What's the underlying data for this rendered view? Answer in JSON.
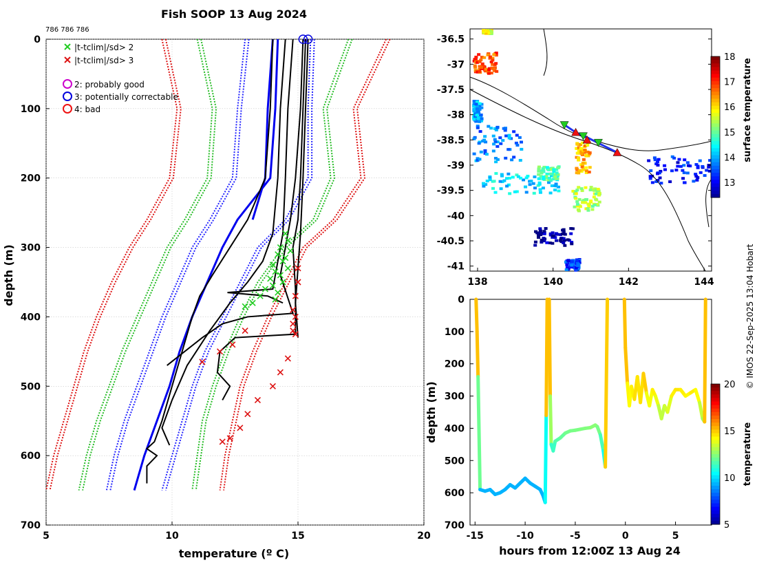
{
  "page_title": "Fish SOOP 13 Aug 2024",
  "ids_label": "786 786 786",
  "copyright": "© IMOS 22-Sep-2025 13:04 Hobart",
  "chart_data": [
    {
      "name": "temperature-profiles",
      "type": "line",
      "title": "Fish SOOP 13 Aug 2024",
      "xlabel": "temperature (º C)",
      "ylabel": "depth (m)",
      "xlim": [
        5,
        20
      ],
      "ylim": [
        700,
        0
      ],
      "xticks": [
        "5",
        "10",
        "15",
        "20"
      ],
      "yticks": [
        "0",
        "100",
        "200",
        "300",
        "400",
        "500",
        "600",
        "700"
      ],
      "legend": {
        "position": "top-left",
        "entries": [
          {
            "label": "|t-tclim|/sd> 2",
            "marker": "x",
            "color": "#22cc22"
          },
          {
            "label": "|t-tclim|/sd> 3",
            "marker": "x",
            "color": "#dd1111"
          },
          {
            "label": "2: probably good",
            "marker": "o",
            "color": "#cc00cc"
          },
          {
            "label": "3: potentially correctable",
            "marker": "o",
            "color": "#0000dd"
          },
          {
            "label": "4: bad",
            "marker": "o",
            "color": "#ee1111"
          }
        ]
      },
      "climatology": [
        {
          "name": "clim mean (solid)",
          "style": "solid",
          "color": "#0000ee",
          "depth": [
            0,
            100,
            200,
            260,
            300,
            350,
            400,
            450,
            500,
            550,
            600,
            650
          ],
          "temp": [
            14.2,
            14.1,
            13.9,
            12.6,
            12.0,
            11.4,
            10.8,
            10.3,
            9.9,
            9.4,
            8.9,
            8.5
          ]
        },
        {
          "name": "clim mean (second)",
          "style": "solid",
          "color": "#0000ee",
          "depth": [
            0,
            100,
            200,
            260
          ],
          "temp": [
            14.0,
            13.8,
            13.7,
            13.2
          ]
        },
        {
          "name": "clim -1sd",
          "style": "dotted",
          "color": "#2222ff",
          "depth": [
            0,
            100,
            200,
            260,
            300,
            350,
            400,
            450,
            500,
            550,
            600,
            650
          ],
          "temp": [
            12.9,
            12.6,
            12.4,
            11.5,
            10.8,
            10.2,
            9.6,
            9.1,
            8.6,
            8.1,
            7.7,
            7.4
          ]
        },
        {
          "name": "clim +1sd",
          "style": "dotted",
          "color": "#2222ff",
          "depth": [
            0,
            100,
            200,
            260,
            300,
            350,
            400,
            450,
            500,
            550,
            600,
            650
          ],
          "temp": [
            15.5,
            15.4,
            15.4,
            14.5,
            13.4,
            12.7,
            12.0,
            11.3,
            10.8,
            10.4,
            10.0,
            9.6
          ]
        },
        {
          "name": "clim -2sd",
          "style": "dotted",
          "color": "#22bb22",
          "depth": [
            0,
            100,
            200,
            260,
            300,
            350,
            400,
            450,
            500,
            550,
            600,
            650
          ],
          "temp": [
            11.0,
            11.6,
            11.4,
            10.5,
            9.8,
            9.2,
            8.6,
            8.0,
            7.5,
            7.0,
            6.6,
            6.3
          ]
        },
        {
          "name": "clim +2sd",
          "style": "dotted",
          "color": "#22bb22",
          "depth": [
            0,
            100,
            200,
            260,
            300,
            350,
            400,
            450,
            500,
            550,
            600,
            650
          ],
          "temp": [
            17.0,
            16.0,
            16.3,
            15.6,
            14.4,
            13.4,
            12.7,
            12.1,
            11.6,
            11.2,
            11.0,
            10.8
          ]
        },
        {
          "name": "clim -3sd",
          "style": "dotted",
          "color": "#dd1111",
          "depth": [
            0,
            100,
            200,
            260,
            300,
            350,
            400,
            450,
            500,
            550,
            600,
            650
          ],
          "temp": [
            9.6,
            10.2,
            9.9,
            9.0,
            8.3,
            7.6,
            7.0,
            6.5,
            6.1,
            5.7,
            5.3,
            5.0
          ]
        },
        {
          "name": "clim +3sd",
          "style": "dotted",
          "color": "#dd1111",
          "depth": [
            0,
            100,
            200,
            260,
            300,
            350,
            400,
            450,
            500,
            550,
            600,
            650
          ],
          "temp": [
            18.5,
            17.2,
            17.5,
            16.4,
            15.2,
            14.5,
            13.8,
            13.2,
            12.7,
            12.4,
            12.1,
            11.9
          ]
        }
      ],
      "profiles": [
        {
          "depth": [
            0,
            100,
            200,
            260,
            300,
            340,
            370,
            400,
            450,
            500,
            550,
            580,
            590,
            600,
            615,
            640
          ],
          "temp": [
            14.0,
            13.9,
            13.7,
            13.0,
            12.3,
            11.6,
            11.1,
            10.8,
            10.4,
            10.0,
            9.6,
            9.3,
            9.0,
            9.4,
            9.0,
            9.0
          ]
        },
        {
          "depth": [
            0,
            100,
            200,
            280,
            320,
            350,
            380,
            420,
            470,
            520,
            560,
            585
          ],
          "temp": [
            14.5,
            14.3,
            14.2,
            14.0,
            13.6,
            13.0,
            12.3,
            11.5,
            10.6,
            10.0,
            9.6,
            9.9
          ]
        },
        {
          "depth": [
            0,
            100,
            200,
            280,
            320,
            360,
            365,
            370,
            380
          ],
          "temp": [
            14.8,
            14.6,
            14.5,
            14.4,
            14.2,
            14.0,
            12.2,
            13.8,
            14.4
          ]
        },
        {
          "depth": [
            0,
            100,
            200,
            260,
            300,
            340,
            395,
            400,
            410,
            430,
            470
          ],
          "temp": [
            15.2,
            15.1,
            14.9,
            14.7,
            14.5,
            14.3,
            14.8,
            13.0,
            12.0,
            11.2,
            9.8
          ]
        },
        {
          "depth": [
            0,
            100,
            200,
            260,
            300,
            360,
            400,
            420,
            425,
            430,
            450,
            480,
            500,
            520
          ],
          "temp": [
            15.3,
            15.2,
            15.1,
            15.0,
            14.8,
            14.9,
            14.9,
            14.9,
            14.9,
            12.5,
            11.9,
            11.8,
            12.3,
            12.0
          ]
        },
        {
          "depth": [
            0,
            100,
            200,
            280,
            330,
            380,
            430
          ],
          "temp": [
            15.4,
            15.3,
            15.2,
            15.1,
            15.0,
            14.9,
            15.0
          ]
        }
      ],
      "flagged_points": {
        "gt2sd": {
          "color": "#22cc22",
          "points": [
            [
              14.5,
              280
            ],
            [
              14.6,
              290
            ],
            [
              14.3,
              300
            ],
            [
              14.7,
              305
            ],
            [
              14.2,
              310
            ],
            [
              14.5,
              315
            ],
            [
              14.4,
              320
            ],
            [
              14.0,
              325
            ],
            [
              14.6,
              330
            ],
            [
              14.1,
              335
            ],
            [
              14.3,
              340
            ],
            [
              13.9,
              345
            ],
            [
              14.4,
              350
            ],
            [
              14.0,
              355
            ],
            [
              13.7,
              360
            ],
            [
              14.2,
              365
            ],
            [
              13.5,
              370
            ],
            [
              14.1,
              375
            ],
            [
              13.2,
              380
            ],
            [
              12.9,
              385
            ]
          ]
        },
        "gt3sd": {
          "color": "#dd1111",
          "points": [
            [
              15.0,
              330
            ],
            [
              15.0,
              350
            ],
            [
              14.9,
              370
            ],
            [
              14.8,
              390
            ],
            [
              14.9,
              400
            ],
            [
              14.8,
              410
            ],
            [
              14.8,
              420
            ],
            [
              14.9,
              425
            ],
            [
              12.9,
              420
            ],
            [
              12.4,
              440
            ],
            [
              11.9,
              450
            ],
            [
              11.2,
              465
            ],
            [
              14.6,
              460
            ],
            [
              14.3,
              480
            ],
            [
              14.0,
              500
            ],
            [
              13.4,
              520
            ],
            [
              13.0,
              540
            ],
            [
              12.7,
              560
            ],
            [
              12.3,
              575
            ],
            [
              12.0,
              580
            ]
          ]
        },
        "qc_circles": [
          {
            "temp": 15.2,
            "depth": 0,
            "flag": "3: potentially correctable",
            "color": "#0000dd"
          },
          {
            "temp": 15.4,
            "depth": 0,
            "flag": "3: potentially correctable",
            "color": "#0000dd"
          }
        ]
      }
    },
    {
      "name": "sst-map",
      "type": "heatmap",
      "xlim": [
        137.8,
        144.2
      ],
      "ylim": [
        -41.1,
        -36.3
      ],
      "xticks": [
        "138",
        "140",
        "142",
        "144"
      ],
      "yticks": [
        "-36.5",
        "-37",
        "-37.5",
        "-38",
        "-38.5",
        "-39",
        "-39.5",
        "-40",
        "-40.5",
        "-41"
      ],
      "colorbar": {
        "label": "surface temperature",
        "range": [
          12.4,
          18
        ],
        "ticks": [
          "13",
          "14",
          "15",
          "16",
          "17",
          "18"
        ]
      },
      "track": {
        "lon": [
          140.3,
          140.6,
          140.9,
          141.3,
          141.7
        ],
        "lat": [
          -38.2,
          -38.35,
          -38.45,
          -38.6,
          -38.75
        ]
      },
      "markers": [
        {
          "type": "triangle-down",
          "color": "#22cc22",
          "lon": 140.3,
          "lat": -38.2
        },
        {
          "type": "triangle-down",
          "color": "#22cc22",
          "lon": 140.8,
          "lat": -38.42
        },
        {
          "type": "triangle-down",
          "color": "#22cc22",
          "lon": 141.2,
          "lat": -38.55
        },
        {
          "type": "triangle",
          "color": "#ee1111",
          "lon": 140.6,
          "lat": -38.35
        },
        {
          "type": "triangle",
          "color": "#ee1111",
          "lon": 140.9,
          "lat": -38.5
        },
        {
          "type": "triangle",
          "color": "#ee1111",
          "lon": 141.7,
          "lat": -38.75
        }
      ]
    },
    {
      "name": "depth-time-section",
      "type": "line",
      "xlabel": "hours from 12:00Z 13 Aug 24",
      "ylabel": "depth (m)",
      "xlim": [
        -15.5,
        8.6
      ],
      "ylim": [
        700,
        0
      ],
      "xticks": [
        "-15",
        "-10",
        "-5",
        "0",
        "5"
      ],
      "yticks": [
        "0",
        "100",
        "200",
        "300",
        "400",
        "500",
        "600",
        "700"
      ],
      "colorbar": {
        "label": "temperature",
        "range": [
          5,
          20
        ],
        "ticks": [
          "5",
          "10",
          "15",
          "20"
        ]
      },
      "segments": [
        {
          "hours": [
            -14.9,
            -14.8,
            -14.7,
            -14.5,
            -14.0,
            -13.5,
            -13.0,
            -12.5,
            -12.0,
            -11.5,
            -11.0,
            -10.5,
            -10.0,
            -9.5,
            -9.0,
            -8.5,
            -8.2,
            -8.0,
            -7.9,
            -7.8
          ],
          "depth": [
            0,
            100,
            240,
            590,
            595,
            590,
            605,
            600,
            590,
            575,
            585,
            570,
            555,
            570,
            580,
            590,
            610,
            630,
            360,
            0
          ]
        },
        {
          "hours": [
            -7.6,
            -7.5,
            -7.4,
            -7.2,
            -7.0,
            -6.5,
            -6.0,
            -5.5,
            -5.0,
            -4.5,
            -4.0,
            -3.5,
            -3.0,
            -2.8,
            -2.5,
            -2.2,
            -2.0,
            -1.8
          ],
          "depth": [
            0,
            300,
            450,
            470,
            440,
            430,
            415,
            408,
            406,
            403,
            400,
            398,
            390,
            395,
            420,
            470,
            520,
            0
          ]
        },
        {
          "hours": [
            -0.1,
            0.0,
            0.2,
            0.4,
            0.6,
            0.9,
            1.2,
            1.5,
            1.8,
            2.1,
            2.4,
            2.7,
            3.0,
            3.3,
            3.6,
            3.9,
            4.2,
            4.6,
            5.0,
            5.5,
            6.0,
            6.5,
            7.0,
            7.4,
            7.7,
            7.9,
            8.0
          ],
          "depth": [
            0,
            150,
            260,
            330,
            270,
            310,
            240,
            320,
            230,
            290,
            330,
            280,
            300,
            330,
            370,
            330,
            350,
            300,
            280,
            280,
            300,
            290,
            280,
            320,
            370,
            380,
            0
          ]
        }
      ]
    }
  ]
}
